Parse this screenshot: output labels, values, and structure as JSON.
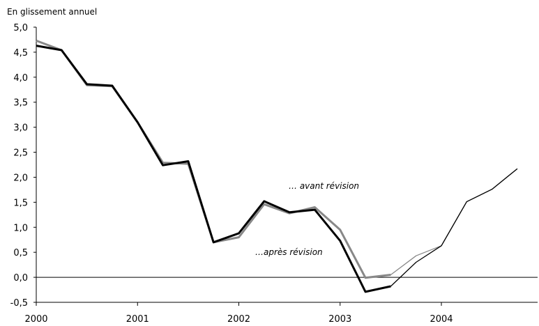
{
  "chart_data": {
    "type": "line",
    "ylabel": "En glissement annuel",
    "ylim": [
      -0.5,
      5.0
    ],
    "yticks": [
      "5,0",
      "4,5",
      "4,0",
      "3,5",
      "3,0",
      "2,5",
      "2,0",
      "1,5",
      "1,0",
      "0,5",
      "0,0",
      "-0,5"
    ],
    "ytick_values": [
      5.0,
      4.5,
      4.0,
      3.5,
      3.0,
      2.5,
      2.0,
      1.5,
      1.0,
      0.5,
      0.0,
      -0.5
    ],
    "xticks": [
      "2000",
      "2001",
      "2002",
      "2003",
      "2004"
    ],
    "xlim": [
      2000.0,
      2004.95
    ],
    "zero_line": true,
    "annotations": [
      "… avant révision",
      "…après révision"
    ],
    "series": [
      {
        "color": "#000000",
        "x": [
          2000.0,
          2000.25,
          2000.5,
          2000.75,
          2001.0,
          2001.25,
          2001.5,
          2001.75,
          2002.0,
          2002.25,
          2002.5,
          2002.75,
          2003.0,
          2003.25,
          2003.5,
          2003.75,
          2004.0,
          2004.25,
          2004.5,
          2004.75
        ],
        "values": [
          4.63,
          4.54,
          3.86,
          3.83,
          3.1,
          2.24,
          2.32,
          0.7,
          0.88,
          1.52,
          1.3,
          1.35,
          0.73,
          -0.29,
          -0.18,
          0.3,
          0.63,
          1.51,
          1.76,
          2.17
        ],
        "emphasis_until": 2003.5
      },
      {
        "color": "#888888",
        "x": [
          2000.0,
          2000.25,
          2000.5,
          2000.75,
          2001.0,
          2001.25,
          2001.5,
          2001.75,
          2002.0,
          2002.25,
          2002.5,
          2002.75,
          2003.0,
          2003.25,
          2003.5,
          2003.75,
          2004.0,
          2004.25,
          2004.5,
          2004.75
        ],
        "values": [
          4.73,
          4.54,
          3.84,
          3.82,
          3.1,
          2.29,
          2.27,
          0.7,
          0.8,
          1.46,
          1.28,
          1.4,
          0.95,
          -0.01,
          0.05,
          0.43,
          0.63,
          1.51,
          1.76,
          2.17
        ],
        "emphasis_until": 2003.5
      }
    ]
  }
}
